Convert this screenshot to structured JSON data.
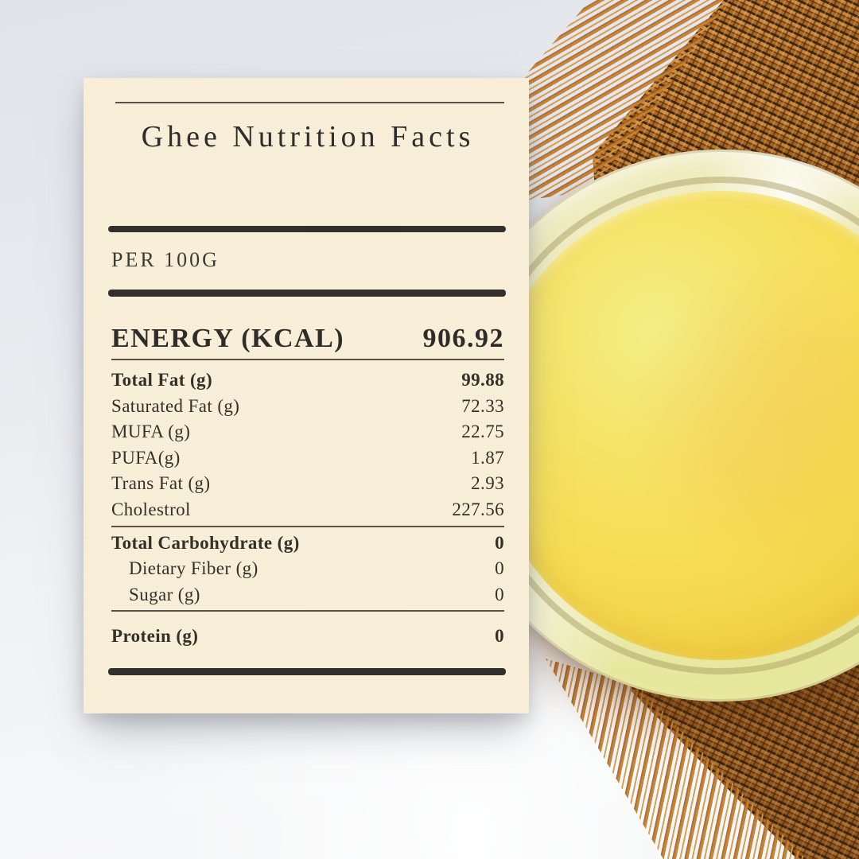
{
  "palette": {
    "page_bg_top": "#e0e4e9",
    "page_bg_bottom": "#f6f7f8",
    "card_bg": "#faf0da",
    "ink": "#2f2d2a",
    "rule": "#55524a",
    "rule_thick": "#31302c",
    "burlap_main": "#c07a2e",
    "burlap_dark": "#7c4516",
    "burlap_light": "#daa155",
    "fringe": "#c67f2e",
    "glass_rim": "#ece9b6",
    "ghee_light": "#f3ee86",
    "ghee_mid": "#f6dc52",
    "ghee_deep": "#eec93c"
  },
  "card": {
    "title": "Ghee Nutrition Facts",
    "serving_label": "PER 100G",
    "energy": {
      "label": "ENERGY (KCAL)",
      "value": "906.92"
    },
    "rows": [
      {
        "label": "Total Fat (g)",
        "value": "99.88",
        "style": "bold"
      },
      {
        "label": "Saturated Fat (g)",
        "value": "72.33",
        "style": "normal"
      },
      {
        "label": "MUFA (g)",
        "value": "22.75",
        "style": "normal"
      },
      {
        "label": "PUFA(g)",
        "value": "1.87",
        "style": "normal"
      },
      {
        "label": "Trans Fat (g)",
        "value": "2.93",
        "style": "normal"
      },
      {
        "label": "Cholestrol",
        "value": "227.56",
        "style": "normal",
        "divider_after": "thin"
      },
      {
        "label": "Total Carbohydrate (g)",
        "value": "0",
        "style": "bold"
      },
      {
        "label": "Dietary Fiber (g)",
        "value": "0",
        "style": "indent"
      },
      {
        "label": "Sugar (g)",
        "value": "0",
        "style": "indent",
        "divider_after": "thin-gap"
      },
      {
        "label": "Protein (g)",
        "value": "0",
        "style": "bold"
      }
    ]
  }
}
